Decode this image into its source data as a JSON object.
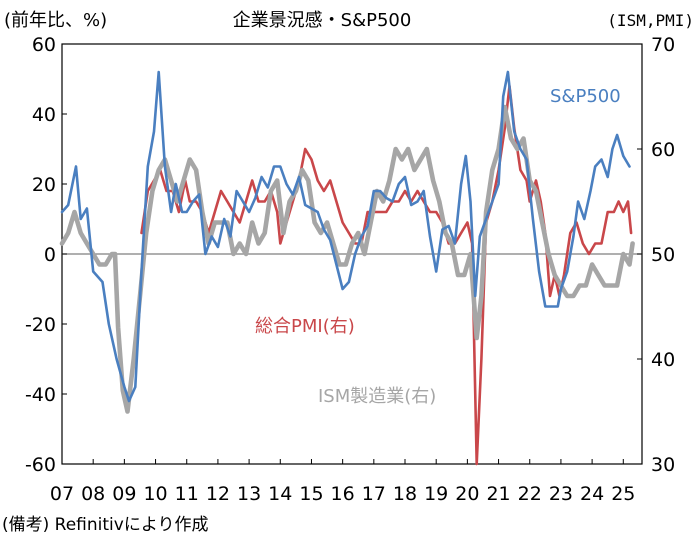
{
  "chart_data": {
    "type": "line",
    "title": "企業景況感・S&P500",
    "left_axis_label": "(前年比、%)",
    "right_axis_label": "(ISM,PMI)",
    "source_note": "(備考) Refinitivにより作成",
    "ylim_left": [
      -60,
      60
    ],
    "yticks_left": [
      "60",
      "40",
      "20",
      "0",
      "-20",
      "-40",
      "-60"
    ],
    "ylim_right": [
      30,
      70
    ],
    "yticks_right": [
      "70",
      "60",
      "50",
      "40",
      "30"
    ],
    "xlim": [
      2007,
      2025.6
    ],
    "xticks": [
      "07",
      "08",
      "09",
      "10",
      "11",
      "12",
      "13",
      "14",
      "15",
      "16",
      "17",
      "18",
      "19",
      "20",
      "21",
      "22",
      "23",
      "24",
      "25"
    ],
    "colors": {
      "sp500": "#4a7fc0",
      "pmi": "#c9474a",
      "ism": "#a6a6a6"
    },
    "series": [
      {
        "name": "S&P500",
        "axis": "left",
        "points": [
          [
            2007.0,
            12
          ],
          [
            2007.2,
            14
          ],
          [
            2007.45,
            25
          ],
          [
            2007.6,
            10
          ],
          [
            2007.8,
            13
          ],
          [
            2008.0,
            -5
          ],
          [
            2008.3,
            -8
          ],
          [
            2008.5,
            -20
          ],
          [
            2008.75,
            -30
          ],
          [
            2009.0,
            -38
          ],
          [
            2009.15,
            -42
          ],
          [
            2009.35,
            -38
          ],
          [
            2009.55,
            -5
          ],
          [
            2009.75,
            25
          ],
          [
            2009.95,
            35
          ],
          [
            2010.1,
            52
          ],
          [
            2010.3,
            25
          ],
          [
            2010.5,
            12
          ],
          [
            2010.65,
            20
          ],
          [
            2010.85,
            12
          ],
          [
            2011.0,
            12
          ],
          [
            2011.2,
            15
          ],
          [
            2011.4,
            17
          ],
          [
            2011.6,
            0
          ],
          [
            2011.8,
            5
          ],
          [
            2012.0,
            2
          ],
          [
            2012.2,
            10
          ],
          [
            2012.4,
            5
          ],
          [
            2012.6,
            18
          ],
          [
            2012.8,
            15
          ],
          [
            2013.0,
            12
          ],
          [
            2013.2,
            16
          ],
          [
            2013.4,
            22
          ],
          [
            2013.6,
            19
          ],
          [
            2013.8,
            25
          ],
          [
            2014.0,
            25
          ],
          [
            2014.2,
            20
          ],
          [
            2014.4,
            17
          ],
          [
            2014.6,
            22
          ],
          [
            2014.8,
            14
          ],
          [
            2015.0,
            13
          ],
          [
            2015.2,
            12
          ],
          [
            2015.4,
            7
          ],
          [
            2015.6,
            4
          ],
          [
            2015.8,
            -3
          ],
          [
            2016.0,
            -10
          ],
          [
            2016.2,
            -8
          ],
          [
            2016.4,
            0
          ],
          [
            2016.6,
            5
          ],
          [
            2016.8,
            8
          ],
          [
            2017.0,
            18
          ],
          [
            2017.2,
            18
          ],
          [
            2017.4,
            16
          ],
          [
            2017.6,
            15
          ],
          [
            2017.8,
            20
          ],
          [
            2018.0,
            22
          ],
          [
            2018.2,
            14
          ],
          [
            2018.4,
            15
          ],
          [
            2018.6,
            18
          ],
          [
            2018.8,
            5
          ],
          [
            2019.0,
            -5
          ],
          [
            2019.2,
            7
          ],
          [
            2019.4,
            8
          ],
          [
            2019.6,
            3
          ],
          [
            2019.8,
            20
          ],
          [
            2019.95,
            28
          ],
          [
            2020.1,
            15
          ],
          [
            2020.25,
            -12
          ],
          [
            2020.4,
            5
          ],
          [
            2020.6,
            10
          ],
          [
            2020.8,
            15
          ],
          [
            2021.0,
            20
          ],
          [
            2021.15,
            45
          ],
          [
            2021.3,
            52
          ],
          [
            2021.5,
            35
          ],
          [
            2021.7,
            30
          ],
          [
            2021.9,
            27
          ],
          [
            2022.1,
            10
          ],
          [
            2022.3,
            -5
          ],
          [
            2022.5,
            -15
          ],
          [
            2022.7,
            -15
          ],
          [
            2022.9,
            -15
          ],
          [
            2023.0,
            -10
          ],
          [
            2023.2,
            -5
          ],
          [
            2023.4,
            5
          ],
          [
            2023.55,
            15
          ],
          [
            2023.75,
            10
          ],
          [
            2023.95,
            18
          ],
          [
            2024.1,
            25
          ],
          [
            2024.3,
            27
          ],
          [
            2024.5,
            22
          ],
          [
            2024.65,
            30
          ],
          [
            2024.8,
            34
          ],
          [
            2025.0,
            28
          ],
          [
            2025.2,
            25
          ]
        ]
      },
      {
        "name": "総合PMI(右)",
        "axis": "right",
        "points": [
          [
            2009.55,
            52
          ],
          [
            2009.75,
            56
          ],
          [
            2009.95,
            57
          ],
          [
            2010.15,
            58
          ],
          [
            2010.35,
            56
          ],
          [
            2010.55,
            56
          ],
          [
            2010.75,
            54
          ],
          [
            2010.95,
            57
          ],
          [
            2011.1,
            55
          ],
          [
            2011.3,
            55
          ],
          [
            2011.5,
            54
          ],
          [
            2011.7,
            52
          ],
          [
            2011.9,
            54
          ],
          [
            2012.1,
            56
          ],
          [
            2012.3,
            55
          ],
          [
            2012.5,
            54
          ],
          [
            2012.7,
            53
          ],
          [
            2012.9,
            55
          ],
          [
            2013.1,
            57
          ],
          [
            2013.3,
            55
          ],
          [
            2013.5,
            55
          ],
          [
            2013.7,
            56
          ],
          [
            2013.9,
            54
          ],
          [
            2014.0,
            51
          ],
          [
            2014.2,
            53
          ],
          [
            2014.4,
            55
          ],
          [
            2014.6,
            57
          ],
          [
            2014.8,
            60
          ],
          [
            2015.0,
            59
          ],
          [
            2015.2,
            57
          ],
          [
            2015.4,
            56
          ],
          [
            2015.6,
            57
          ],
          [
            2015.8,
            55
          ],
          [
            2016.0,
            53
          ],
          [
            2016.2,
            52
          ],
          [
            2016.4,
            51
          ],
          [
            2016.6,
            51
          ],
          [
            2016.8,
            54
          ],
          [
            2017.0,
            54
          ],
          [
            2017.2,
            54
          ],
          [
            2017.4,
            54
          ],
          [
            2017.6,
            55
          ],
          [
            2017.8,
            55
          ],
          [
            2018.0,
            56
          ],
          [
            2018.2,
            55
          ],
          [
            2018.4,
            56
          ],
          [
            2018.6,
            55
          ],
          [
            2018.8,
            54
          ],
          [
            2019.0,
            54
          ],
          [
            2019.2,
            53
          ],
          [
            2019.4,
            51
          ],
          [
            2019.6,
            51
          ],
          [
            2019.8,
            52
          ],
          [
            2020.0,
            53
          ],
          [
            2020.15,
            51
          ],
          [
            2020.3,
            30
          ],
          [
            2020.45,
            40
          ],
          [
            2020.6,
            53
          ],
          [
            2020.8,
            55
          ],
          [
            2021.0,
            58
          ],
          [
            2021.2,
            62
          ],
          [
            2021.35,
            66
          ],
          [
            2021.5,
            62
          ],
          [
            2021.7,
            58
          ],
          [
            2021.9,
            57
          ],
          [
            2022.0,
            55
          ],
          [
            2022.2,
            57
          ],
          [
            2022.35,
            55
          ],
          [
            2022.5,
            52
          ],
          [
            2022.65,
            46
          ],
          [
            2022.8,
            48
          ],
          [
            2022.95,
            46
          ],
          [
            2023.1,
            48
          ],
          [
            2023.3,
            52
          ],
          [
            2023.5,
            53
          ],
          [
            2023.7,
            51
          ],
          [
            2023.9,
            50
          ],
          [
            2024.1,
            51
          ],
          [
            2024.3,
            51
          ],
          [
            2024.5,
            54
          ],
          [
            2024.7,
            54
          ],
          [
            2024.85,
            55
          ],
          [
            2025.0,
            54
          ],
          [
            2025.15,
            55
          ],
          [
            2025.25,
            52
          ]
        ]
      },
      {
        "name": "ISM製造業(右)",
        "axis": "right",
        "points": [
          [
            2007.0,
            51
          ],
          [
            2007.2,
            52
          ],
          [
            2007.4,
            54
          ],
          [
            2007.6,
            52
          ],
          [
            2007.8,
            51
          ],
          [
            2008.0,
            50
          ],
          [
            2008.2,
            49
          ],
          [
            2008.4,
            49
          ],
          [
            2008.6,
            50
          ],
          [
            2008.7,
            50
          ],
          [
            2008.8,
            43
          ],
          [
            2008.95,
            37
          ],
          [
            2009.1,
            35
          ],
          [
            2009.3,
            40
          ],
          [
            2009.5,
            46
          ],
          [
            2009.7,
            52
          ],
          [
            2009.9,
            56
          ],
          [
            2010.1,
            58
          ],
          [
            2010.3,
            59
          ],
          [
            2010.5,
            57
          ],
          [
            2010.7,
            55
          ],
          [
            2010.9,
            57
          ],
          [
            2011.1,
            59
          ],
          [
            2011.3,
            58
          ],
          [
            2011.5,
            54
          ],
          [
            2011.7,
            51
          ],
          [
            2011.9,
            53
          ],
          [
            2012.1,
            53
          ],
          [
            2012.3,
            53
          ],
          [
            2012.5,
            50
          ],
          [
            2012.7,
            51
          ],
          [
            2012.9,
            50
          ],
          [
            2013.1,
            53
          ],
          [
            2013.3,
            51
          ],
          [
            2013.5,
            52
          ],
          [
            2013.7,
            56
          ],
          [
            2013.9,
            57
          ],
          [
            2014.1,
            52
          ],
          [
            2014.3,
            55
          ],
          [
            2014.5,
            56
          ],
          [
            2014.7,
            58
          ],
          [
            2014.9,
            57
          ],
          [
            2015.1,
            53
          ],
          [
            2015.3,
            52
          ],
          [
            2015.5,
            53
          ],
          [
            2015.7,
            51
          ],
          [
            2015.9,
            49
          ],
          [
            2016.1,
            49
          ],
          [
            2016.3,
            51
          ],
          [
            2016.5,
            52
          ],
          [
            2016.7,
            50
          ],
          [
            2016.9,
            53
          ],
          [
            2017.1,
            56
          ],
          [
            2017.3,
            55
          ],
          [
            2017.5,
            57
          ],
          [
            2017.7,
            60
          ],
          [
            2017.9,
            59
          ],
          [
            2018.1,
            60
          ],
          [
            2018.3,
            58
          ],
          [
            2018.5,
            59
          ],
          [
            2018.7,
            60
          ],
          [
            2018.9,
            57
          ],
          [
            2019.1,
            55
          ],
          [
            2019.3,
            52
          ],
          [
            2019.5,
            51
          ],
          [
            2019.7,
            48
          ],
          [
            2019.9,
            48
          ],
          [
            2020.1,
            50
          ],
          [
            2020.3,
            42
          ],
          [
            2020.45,
            46
          ],
          [
            2020.6,
            54
          ],
          [
            2020.8,
            58
          ],
          [
            2021.0,
            60
          ],
          [
            2021.2,
            64
          ],
          [
            2021.4,
            61
          ],
          [
            2021.6,
            60
          ],
          [
            2021.8,
            61
          ],
          [
            2022.0,
            57
          ],
          [
            2022.2,
            56
          ],
          [
            2022.4,
            53
          ],
          [
            2022.6,
            50
          ],
          [
            2022.8,
            48
          ],
          [
            2023.0,
            47
          ],
          [
            2023.2,
            46
          ],
          [
            2023.4,
            46
          ],
          [
            2023.6,
            47
          ],
          [
            2023.8,
            47
          ],
          [
            2024.0,
            49
          ],
          [
            2024.2,
            48
          ],
          [
            2024.4,
            47
          ],
          [
            2024.6,
            47
          ],
          [
            2024.8,
            47
          ],
          [
            2025.0,
            50
          ],
          [
            2025.2,
            49
          ],
          [
            2025.3,
            51
          ]
        ]
      }
    ]
  }
}
